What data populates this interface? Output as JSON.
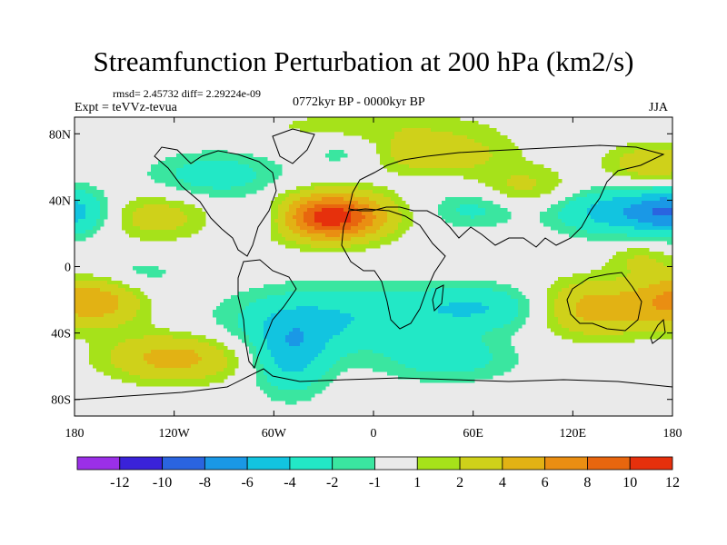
{
  "title": "Streamfunction Perturbation at 200 hPa (km2/s)",
  "stats_text": "rmsd= 2.45732 diff= 2.29224e-09",
  "experiment": "Expt = teVVz-tevua",
  "period": "0772kyr BP - 0000kyr BP",
  "season": "JJA",
  "colors": {
    "background": "#eaeaea",
    "coast": "#000000",
    "levels": [
      "#9b2fe8",
      "#3a22d9",
      "#2a64e0",
      "#1a98e6",
      "#12c4e0",
      "#22e8c6",
      "#3ae6a0",
      "#eaeaea",
      "#a6e21a",
      "#cfd11a",
      "#e2b214",
      "#ea8e12",
      "#e8660e",
      "#e6300c"
    ]
  },
  "chart_data": {
    "type": "heatmap",
    "projection": "cylindrical-equidistant",
    "xlim": [
      -180,
      180
    ],
    "ylim": [
      -90,
      90
    ],
    "x_ticks": [
      {
        "value": -180,
        "label": "180"
      },
      {
        "value": -120,
        "label": "120W"
      },
      {
        "value": -60,
        "label": "60W"
      },
      {
        "value": 0,
        "label": "0"
      },
      {
        "value": 60,
        "label": "60E"
      },
      {
        "value": 120,
        "label": "120E"
      },
      {
        "value": 180,
        "label": "180"
      }
    ],
    "y_ticks": [
      {
        "value": 80,
        "label": "80N"
      },
      {
        "value": 40,
        "label": "40N"
      },
      {
        "value": 0,
        "label": "0"
      },
      {
        "value": -40,
        "label": "40S"
      },
      {
        "value": -80,
        "label": "80S"
      }
    ],
    "colorbar_levels": [
      {
        "value": -12,
        "label": "-12"
      },
      {
        "value": -10,
        "label": "-10"
      },
      {
        "value": -8,
        "label": "-8"
      },
      {
        "value": -6,
        "label": "-6"
      },
      {
        "value": -4,
        "label": "-4"
      },
      {
        "value": -2,
        "label": "-2"
      },
      {
        "value": -1,
        "label": "-1"
      },
      {
        "value": 1,
        "label": "1"
      },
      {
        "value": 2,
        "label": "2"
      },
      {
        "value": 4,
        "label": "4"
      },
      {
        "value": 6,
        "label": "6"
      },
      {
        "value": 8,
        "label": "8"
      },
      {
        "value": 10,
        "label": "10"
      },
      {
        "value": 12,
        "label": "12"
      }
    ],
    "field_features": [
      {
        "lon": -25,
        "lat": 30,
        "amp": 11.5,
        "rlon": 32,
        "rlat": 14
      },
      {
        "lon": 70,
        "lat": -25,
        "amp": -4.5,
        "rlon": 60,
        "rlat": 14
      },
      {
        "lon": -35,
        "lat": -33,
        "amp": -4.0,
        "rlon": 55,
        "rlat": 20
      },
      {
        "lon": -50,
        "lat": -55,
        "amp": -4.5,
        "rlon": 22,
        "rlat": 22
      },
      {
        "lon": 150,
        "lat": 33,
        "amp": -5.5,
        "rlon": 40,
        "rlat": 14
      },
      {
        "lon": -180,
        "lat": 33,
        "amp": -5.0,
        "rlon": 20,
        "rlat": 14
      },
      {
        "lon": 180,
        "lat": 33,
        "amp": -5.0,
        "rlon": 20,
        "rlat": 14
      },
      {
        "lon": 130,
        "lat": -25,
        "amp": 6.5,
        "rlon": 40,
        "rlat": 16
      },
      {
        "lon": -170,
        "lat": -20,
        "amp": 6.0,
        "rlon": 30,
        "rlat": 16
      },
      {
        "lon": 185,
        "lat": -20,
        "amp": 6.0,
        "rlon": 25,
        "rlat": 16
      },
      {
        "lon": -120,
        "lat": -55,
        "amp": 5.0,
        "rlon": 40,
        "rlat": 14
      },
      {
        "lon": 45,
        "lat": -55,
        "amp": -3.0,
        "rlon": 40,
        "rlat": 14
      },
      {
        "lon": 35,
        "lat": 68,
        "amp": 3.5,
        "rlon": 45,
        "rlat": 12
      },
      {
        "lon": 170,
        "lat": 62,
        "amp": 3.5,
        "rlon": 30,
        "rlat": 12
      },
      {
        "lon": -95,
        "lat": 55,
        "amp": -3.0,
        "rlon": 40,
        "rlat": 14
      },
      {
        "lon": -15,
        "lat": 68,
        "amp": -2.0,
        "rlon": 25,
        "rlat": 10
      },
      {
        "lon": 60,
        "lat": 35,
        "amp": -2.5,
        "rlon": 25,
        "rlat": 12
      },
      {
        "lon": 90,
        "lat": 48,
        "amp": 2.5,
        "rlon": 30,
        "rlat": 12
      },
      {
        "lon": -130,
        "lat": 30,
        "amp": 3.0,
        "rlon": 30,
        "rlat": 14
      },
      {
        "lon": -65,
        "lat": 30,
        "amp": -2.0,
        "rlon": 20,
        "rlat": 10
      },
      {
        "lon": -150,
        "lat": -5,
        "amp": -2.0,
        "rlon": 35,
        "rlat": 12
      },
      {
        "lon": 160,
        "lat": 5,
        "amp": 2.0,
        "rlon": 20,
        "rlat": 10
      },
      {
        "lon": 0,
        "lat": 85,
        "amp": 1.5,
        "rlon": 80,
        "rlat": 10
      }
    ]
  }
}
